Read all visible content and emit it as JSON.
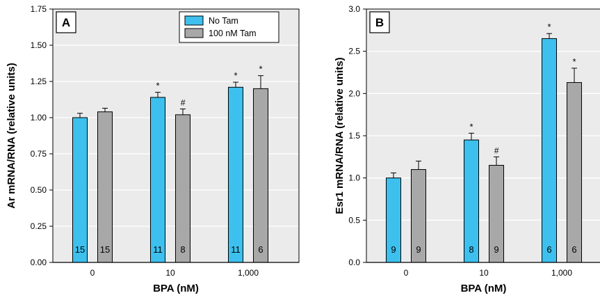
{
  "chart_data": [
    {
      "type": "bar",
      "panel": "A",
      "ylabel": "Ar mRNA/RNA (relative units)",
      "xlabel": "BPA (nM)",
      "categories": [
        "0",
        "10",
        "1,000"
      ],
      "ylim": [
        0,
        1.75
      ],
      "yticks": [
        "0.00",
        "0.25",
        "0.50",
        "0.75",
        "1.00",
        "1.25",
        "1.50",
        "1.75"
      ],
      "grid": true,
      "legend_position": "top-right",
      "series": [
        {
          "name": "No Tam",
          "values": [
            1.0,
            1.14,
            1.21
          ],
          "errors": [
            0.03,
            0.035,
            0.035
          ],
          "n": [
            "15",
            "11",
            "11"
          ],
          "markers": [
            "",
            "*",
            "*"
          ]
        },
        {
          "name": "100 nM Tam",
          "values": [
            1.04,
            1.02,
            1.2
          ],
          "errors": [
            0.025,
            0.04,
            0.09
          ],
          "n": [
            "15",
            "8",
            "6"
          ],
          "markers": [
            "",
            "#",
            "*"
          ]
        }
      ]
    },
    {
      "type": "bar",
      "panel": "B",
      "ylabel": "Esr1 mRNA/RNA (relative units)",
      "xlabel": "BPA (nM)",
      "categories": [
        "0",
        "10",
        "1,000"
      ],
      "ylim": [
        0,
        3.0
      ],
      "yticks": [
        "0.0",
        "0.5",
        "1.0",
        "1.5",
        "2.0",
        "2.5",
        "3.0"
      ],
      "grid": true,
      "series": [
        {
          "name": "No Tam",
          "values": [
            1.0,
            1.45,
            2.65
          ],
          "errors": [
            0.06,
            0.08,
            0.06
          ],
          "n": [
            "9",
            "8",
            "6"
          ],
          "markers": [
            "",
            "*",
            "*"
          ]
        },
        {
          "name": "100 nM Tam",
          "values": [
            1.1,
            1.15,
            2.13
          ],
          "errors": [
            0.1,
            0.1,
            0.17
          ],
          "n": [
            "9",
            "9",
            "6"
          ],
          "markers": [
            "",
            "#",
            "*"
          ]
        }
      ]
    }
  ],
  "colors": {
    "no_tam": "#3dc0ee",
    "tam": "#a8a8a8",
    "plot_bg": "#ebebeb",
    "grid": "#ffffff",
    "frame": "#000000"
  }
}
